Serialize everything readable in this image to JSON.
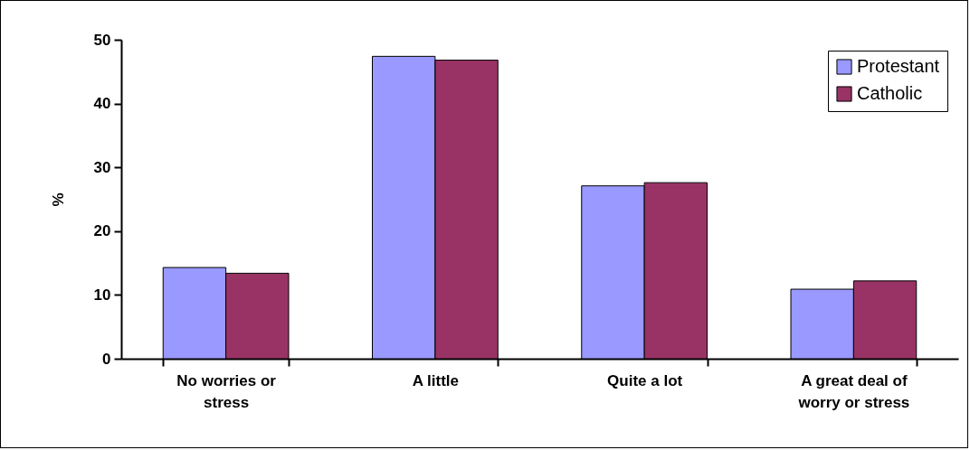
{
  "chart_data": {
    "type": "bar",
    "ylabel": "%",
    "categories": [
      "No worries or stress",
      "A little",
      "Quite a lot",
      "A great deal of worry or stress"
    ],
    "series": [
      {
        "name": "Protestant",
        "color": "#9999ff",
        "values": [
          14.3,
          47.4,
          27.1,
          10.9
        ]
      },
      {
        "name": "Catholic",
        "color": "#993366",
        "values": [
          13.4,
          46.8,
          27.6,
          12.2
        ]
      }
    ],
    "ylim": [
      0,
      50
    ],
    "yticks": [
      0,
      10,
      20,
      30,
      40,
      50
    ],
    "legend": "top right"
  }
}
